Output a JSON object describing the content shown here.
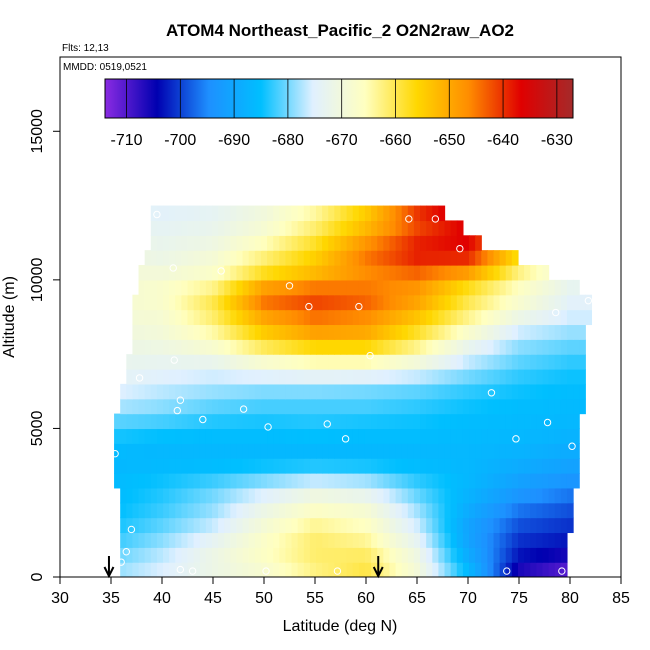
{
  "chart_data": {
    "type": "heatmap",
    "title": "ATOM4 Northeast_Pacific_2 O2N2raw_AO2",
    "annotations": [
      "Flts: 12,13",
      "MMDD: 0519,0521"
    ],
    "xlabel": "Latitude (deg N)",
    "ylabel": "Altitude (m)",
    "xlim": [
      30,
      85
    ],
    "ylim": [
      0,
      17500
    ],
    "x_ticks": [
      30,
      35,
      40,
      45,
      50,
      55,
      60,
      65,
      70,
      75,
      80,
      85
    ],
    "y_ticks": [
      0,
      5000,
      10000,
      15000
    ],
    "colorbar": {
      "range": [
        -714,
        -627
      ],
      "ticks": [
        -710,
        -700,
        -690,
        -680,
        -670,
        -660,
        -650,
        -640,
        -630
      ],
      "colors": [
        "#8a2be2",
        "#0000b0",
        "#1e90ff",
        "#00bfff",
        "#e0f0ff",
        "#ffffc0",
        "#ffd700",
        "#ff8c00",
        "#e00000",
        "#a52a2a"
      ]
    },
    "arrows_lat": [
      34.8,
      61.2
    ],
    "grid": {
      "lat_min": 35.3,
      "lat_max": 81.8,
      "lat_step": 0.6,
      "alt_step": 500,
      "alt_max": 12500,
      "anchors_alt": [
        0,
        500,
        1000,
        1500,
        2000,
        2500,
        3000,
        3500,
        4000,
        4500,
        5000,
        5500,
        6000,
        6500,
        7000,
        7500,
        8000,
        8500,
        9000,
        9500,
        10000,
        10500,
        11000,
        11500,
        12000,
        12500
      ],
      "anchors_lat": [
        35,
        40,
        45,
        50,
        55,
        60,
        65,
        70,
        75,
        80
      ],
      "values": [
        [
          -678,
          -675,
          -672,
          -669,
          -663,
          -659,
          -669,
          -685,
          -708,
          -713
        ],
        [
          -680,
          -676,
          -671,
          -667,
          -662,
          -660,
          -670,
          -688,
          -704,
          -708
        ],
        [
          -682,
          -678,
          -672,
          -666,
          -661,
          -662,
          -672,
          -690,
          -702,
          -704
        ],
        [
          -684,
          -680,
          -675,
          -668,
          -662,
          -665,
          -675,
          -691,
          -700,
          -702
        ],
        [
          -685,
          -682,
          -678,
          -670,
          -665,
          -667,
          -677,
          -690,
          -698,
          -700
        ],
        [
          -686,
          -683,
          -679,
          -673,
          -668,
          -670,
          -679,
          -688,
          -695,
          -698
        ],
        [
          -686,
          -684,
          -681,
          -677,
          -673,
          -675,
          -682,
          -687,
          -692,
          -695
        ],
        [
          -686,
          -685,
          -684,
          -682,
          -680,
          -681,
          -684,
          -686,
          -690,
          -692
        ],
        [
          -687,
          -687,
          -687,
          -687,
          -687,
          -687,
          -687,
          -687,
          -688,
          -690
        ],
        [
          -685,
          -686,
          -686,
          -686,
          -686,
          -686,
          -686,
          -686,
          -687,
          -688
        ],
        [
          -683,
          -684,
          -685,
          -685,
          -684,
          -685,
          -685,
          -686,
          -686,
          -687
        ],
        [
          -679,
          -680,
          -682,
          -683,
          -683,
          -683,
          -684,
          -685,
          -686,
          -686
        ],
        [
          -676,
          -678,
          -680,
          -681,
          -681,
          -681,
          -682,
          -684,
          -685,
          -686
        ],
        [
          -674,
          -676,
          -677,
          -678,
          -678,
          -679,
          -680,
          -682,
          -684,
          -685
        ],
        [
          -673,
          -674,
          -675,
          -672,
          -670,
          -670,
          -673,
          -678,
          -682,
          -684
        ],
        [
          -672,
          -672,
          -670,
          -664,
          -660,
          -660,
          -666,
          -675,
          -680,
          -682
        ],
        [
          -671,
          -670,
          -666,
          -657,
          -652,
          -652,
          -660,
          -670,
          -678,
          -680
        ],
        [
          -670,
          -669,
          -663,
          -652,
          -646,
          -648,
          -656,
          -665,
          -674,
          -677
        ],
        [
          -669,
          -668,
          -660,
          -647,
          -643,
          -645,
          -651,
          -661,
          -669,
          -675
        ],
        [
          -669,
          -667,
          -660,
          -643,
          -640,
          -642,
          -648,
          -659,
          -667,
          -674
        ],
        [
          -669,
          -668,
          -666,
          -655,
          -650,
          -648,
          -647,
          -655,
          -665,
          -672
        ],
        [
          -670,
          -671,
          -668,
          -660,
          -654,
          -645,
          -640,
          -642,
          -660,
          -670
        ],
        [
          -671,
          -672,
          -670,
          -664,
          -656,
          -645,
          -638,
          -637,
          -655,
          -668
        ],
        [
          -672,
          -673,
          -672,
          -667,
          -660,
          -650,
          -640,
          -636,
          -650,
          -665
        ],
        [
          -673,
          -674,
          -673,
          -670,
          -663,
          -654,
          -643,
          -636,
          -648,
          -663
        ],
        [
          -674,
          -675,
          -674,
          -670,
          -665,
          -655,
          -638,
          -630,
          -645,
          -660
        ]
      ],
      "bounds_alt": [
        0,
        1000,
        2000,
        3000,
        4000,
        5000,
        6000,
        7000,
        8000,
        9000,
        9500,
        10000,
        10500,
        11000,
        11500,
        12000,
        12500
      ],
      "bounds_left": [
        36.2,
        36.0,
        35.7,
        35.6,
        35.3,
        35.4,
        35.8,
        36.5,
        37.0,
        37.3,
        37.5,
        37.8,
        38.1,
        38.5,
        38.9,
        39.1,
        39.1
      ],
      "bounds_right": [
        79.5,
        79.5,
        80.0,
        80.2,
        80.6,
        80.8,
        81.0,
        81.0,
        81.2,
        81.6,
        81.8,
        79.0,
        76.3,
        72.4,
        70.0,
        68.0,
        67.0
      ]
    },
    "points": [
      [
        35.4,
        4150
      ],
      [
        36.0,
        500
      ],
      [
        36.5,
        850
      ],
      [
        37.0,
        1600
      ],
      [
        37.8,
        6700
      ],
      [
        39.5,
        12200
      ],
      [
        41.1,
        10400
      ],
      [
        41.2,
        7300
      ],
      [
        41.5,
        5600
      ],
      [
        41.8,
        5950
      ],
      [
        41.8,
        250
      ],
      [
        43.0,
        200
      ],
      [
        44.0,
        5300
      ],
      [
        45.8,
        10300
      ],
      [
        48.0,
        5650
      ],
      [
        50.2,
        200
      ],
      [
        50.4,
        5050
      ],
      [
        52.5,
        9800
      ],
      [
        54.4,
        9100
      ],
      [
        56.2,
        5150
      ],
      [
        57.2,
        200
      ],
      [
        58.0,
        4650
      ],
      [
        59.3,
        9100
      ],
      [
        60.4,
        7450
      ],
      [
        64.2,
        12050
      ],
      [
        66.8,
        12050
      ],
      [
        69.2,
        11050
      ],
      [
        72.3,
        6200
      ],
      [
        73.8,
        200
      ],
      [
        74.7,
        4650
      ],
      [
        77.8,
        5200
      ],
      [
        78.6,
        8900
      ],
      [
        79.2,
        200
      ],
      [
        80.2,
        4400
      ],
      [
        81.8,
        9300
      ]
    ]
  }
}
